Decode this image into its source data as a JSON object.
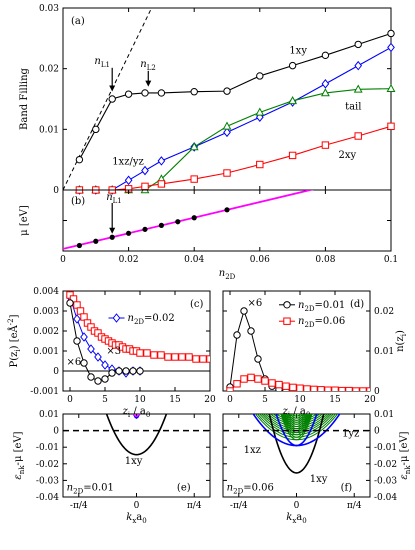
{
  "chart_data": [
    {
      "id": "a",
      "type": "line",
      "panel_label": "(a)",
      "ylabel": "Band Filling",
      "xlim": [
        0,
        0.1
      ],
      "ylim": [
        0,
        0.03
      ],
      "xticks": [
        0,
        0.02,
        0.04,
        0.06,
        0.08,
        0.1
      ],
      "xticklabels": [
        "",
        "",
        "",
        "",
        "",
        ""
      ],
      "yticks": [
        0,
        0.01,
        0.02,
        0.03
      ],
      "yticklabels": [
        "0",
        "0.01",
        "0.02",
        "0.03"
      ],
      "series": [
        {
          "name": "1xy",
          "color": "#000000",
          "marker": "circle",
          "x": [
            0.005,
            0.01,
            0.015,
            0.02,
            0.025,
            0.03,
            0.04,
            0.05,
            0.06,
            0.07,
            0.08,
            0.09,
            0.1
          ],
          "y": [
            0.005,
            0.01,
            0.015,
            0.0158,
            0.016,
            0.016,
            0.0162,
            0.0163,
            0.0188,
            0.0205,
            0.0222,
            0.024,
            0.0258
          ]
        },
        {
          "name": "1xz/yz",
          "color": "#0000ff",
          "marker": "diamond",
          "x": [
            0.005,
            0.01,
            0.015,
            0.02,
            0.025,
            0.03,
            0.04,
            0.05,
            0.06,
            0.07,
            0.08,
            0.09,
            0.1
          ],
          "y": [
            0,
            0,
            0,
            0.0016,
            0.0032,
            0.0048,
            0.0071,
            0.0095,
            0.012,
            0.0145,
            0.0175,
            0.0205,
            0.0235
          ]
        },
        {
          "name": "tail",
          "color": "#008000",
          "marker": "triangle",
          "x": [
            0.005,
            0.01,
            0.015,
            0.02,
            0.025,
            0.03,
            0.04,
            0.05,
            0.06,
            0.07,
            0.08,
            0.09,
            0.1
          ],
          "y": [
            0,
            0,
            0,
            0,
            0,
            0.0018,
            0.0071,
            0.0105,
            0.0128,
            0.0147,
            0.016,
            0.0166,
            0.0167
          ]
        },
        {
          "name": "2xy",
          "color": "#ff0000",
          "marker": "square",
          "x": [
            0.005,
            0.01,
            0.015,
            0.02,
            0.025,
            0.03,
            0.04,
            0.05,
            0.06,
            0.07,
            0.08,
            0.09,
            0.1
          ],
          "y": [
            0,
            0,
            0,
            0.0002,
            0.0006,
            0.001,
            0.0018,
            0.0028,
            0.0042,
            0.0057,
            0.0074,
            0.0089,
            0.0105
          ]
        }
      ],
      "guide_line": {
        "x": [
          0,
          0.027
        ],
        "y": [
          0,
          0.03
        ],
        "dash": true
      },
      "annotations": [
        {
          "text": "n",
          "sub": "L1",
          "x": 0.012,
          "y": 0.0208,
          "arrow_to": [
            0.015,
            0.0159
          ]
        },
        {
          "text": "n",
          "sub": "L2",
          "x": 0.026,
          "y": 0.0203,
          "arrow_to": [
            0.026,
            0.0167
          ]
        },
        {
          "text": "1xy",
          "x": 0.069,
          "y": 0.0225
        },
        {
          "text": "1xz/yz",
          "x": 0.015,
          "y": 0.0042,
          "color": "#0000ff"
        },
        {
          "text": "tail",
          "x": 0.086,
          "y": 0.0133,
          "color": "#008000"
        },
        {
          "text": "2xy",
          "x": 0.084,
          "y": 0.0053,
          "color": "#ff0000"
        }
      ]
    },
    {
      "id": "b",
      "type": "line",
      "panel_label": "(b)",
      "ylabel": "μ [eV]",
      "xlabel": "n2D",
      "xlim": [
        0,
        0.1
      ],
      "ylim": [
        -0.01,
        0.01
      ],
      "xticks": [
        0,
        0.02,
        0.04,
        0.06,
        0.08,
        0.1
      ],
      "xticklabels": [
        "0",
        "0.02",
        "0.04",
        "0.06",
        "0.08",
        "0.1"
      ],
      "yticks": [
        -0.01,
        0,
        0.01
      ],
      "yticklabels": [
        "",
        "",
        ""
      ],
      "line": {
        "color": "#ff00ff",
        "x": [
          0,
          0.1
        ],
        "y": [
          -0.0093,
          0.0163
        ]
      },
      "points": {
        "color": "#000000",
        "x": [
          0.005,
          0.01,
          0.015,
          0.02,
          0.025,
          0.03,
          0.035,
          0.04,
          0.05
        ],
        "y": [
          -0.0082,
          -0.0068,
          -0.0055,
          -0.0042,
          -0.0029,
          -0.0016,
          -0.0004,
          0.0009,
          0.0035
        ]
      },
      "annotations": [
        {
          "text": "n",
          "sub": "L1",
          "x": 0.015,
          "y": 0.0075,
          "arrow_to": [
            0.015,
            -0.005
          ]
        }
      ]
    },
    {
      "id": "c",
      "type": "line",
      "panel_label": "(c)",
      "ylabel": "P(z",
      "ylabel_sub": "i",
      "ylabel_tail": ")  [eÅ",
      "ylabel_sup": "-2",
      "ylabel_end": "]",
      "xlabel": "z",
      "xlabel_sub": "i",
      "xlabel_tail": " / a",
      "xlabel_sub2": "0",
      "xlim": [
        -1,
        20
      ],
      "ylim": [
        -0.001,
        0.004
      ],
      "xticks": [
        0,
        5,
        10,
        15,
        20
      ],
      "xticklabels": [
        "0",
        "5",
        "10",
        "15",
        "20"
      ],
      "yticks": [
        -0.001,
        0,
        0.001,
        0.002,
        0.003,
        0.004
      ],
      "yticklabels": [
        "-0.001",
        "0",
        "0.001",
        "0.002",
        "0.003",
        "0.004"
      ],
      "series": [
        {
          "name": "n2D=0.02",
          "color": "#0000ff",
          "marker": "diamond",
          "x": [
            0,
            1,
            2,
            3,
            4,
            5,
            6,
            7,
            8,
            9,
            10
          ],
          "y": [
            0.0037,
            0.0026,
            0.0017,
            0.0011,
            0.0007,
            0.0003,
            0.0001,
            0,
            -0.0001,
            0,
            0
          ]
        },
        {
          "name": "n2D=0.06",
          "color": "#ff0000",
          "marker": "square",
          "x": [
            0,
            0.5,
            1,
            1.5,
            2,
            2.5,
            3,
            3.5,
            4,
            4.5,
            5,
            5.5,
            6,
            6.5,
            7,
            7.5,
            8,
            8.5,
            9,
            9.5,
            10,
            11,
            12,
            13,
            14,
            15,
            16,
            17,
            18,
            19,
            20
          ],
          "y": [
            0.0038,
            0.0036,
            0.0033,
            0.003,
            0.0027,
            0.0024,
            0.0022,
            0.002,
            0.0019,
            0.0017,
            0.0016,
            0.0015,
            0.0014,
            0.0013,
            0.0013,
            0.0012,
            0.0011,
            0.0011,
            0.001,
            0.001,
            0.0009,
            0.0009,
            0.0008,
            0.0008,
            0.0007,
            0.0007,
            0.0007,
            0.0007,
            0.0006,
            0.0006,
            0.0006
          ]
        },
        {
          "name": "n2D=0.01",
          "color": "#000000",
          "marker": "circle",
          "x": [
            0,
            1,
            2,
            3,
            4,
            5,
            6,
            7,
            8,
            9,
            10
          ],
          "y": [
            0.0034,
            0.0015,
            0.0004,
            -0.0003,
            -0.0005,
            -0.0004,
            -0.0001,
            0,
            0,
            0,
            0
          ]
        }
      ],
      "legend": [
        {
          "label": "n",
          "sub": "2D",
          "tail": "=0.02",
          "color": "#0000ff",
          "marker": "diamond",
          "x": 7.5,
          "y": 0.0025
        }
      ],
      "annotations": [
        {
          "text": "×6",
          "x": -0.5,
          "y": 0.0003
        },
        {
          "text": "×3",
          "x": 5.2,
          "y": 0.00085,
          "color": "#0000ff"
        }
      ]
    },
    {
      "id": "d",
      "type": "line",
      "panel_label": "(d)",
      "ylabel": "n(z",
      "ylabel_sub": "i",
      "ylabel_tail": ")",
      "xlabel": "z",
      "xlabel_sub": "i",
      "xlabel_tail": " / a",
      "xlabel_sub2": "0",
      "xlim": [
        -1,
        20
      ],
      "ylim": [
        0,
        0.025
      ],
      "xticks": [
        0,
        5,
        10,
        15,
        20
      ],
      "xticklabels": [
        "0",
        "5",
        "10",
        "15",
        "20"
      ],
      "yticks": [
        0,
        0.01,
        0.02
      ],
      "yticklabels": [
        "0",
        "0.01",
        "0.02"
      ],
      "series": [
        {
          "name": "n2D=0.01",
          "color": "#000000",
          "marker": "circle",
          "x": [
            0,
            1,
            2,
            3,
            4,
            5,
            6,
            7,
            8,
            9,
            10,
            11,
            12
          ],
          "y": [
            0.001,
            0.014,
            0.02,
            0.015,
            0.008,
            0.003,
            0.0012,
            0.0004,
            0.0001,
            0,
            0,
            0,
            0
          ]
        },
        {
          "name": "n2D=0.06",
          "color": "#ff0000",
          "marker": "square",
          "x": [
            0,
            1,
            2,
            3,
            4,
            5,
            6,
            7,
            8,
            9,
            10,
            11,
            12,
            13,
            14,
            15,
            16,
            17,
            18,
            19,
            20
          ],
          "y": [
            0,
            0.0018,
            0.003,
            0.0034,
            0.003,
            0.0025,
            0.002,
            0.0016,
            0.0012,
            0.0009,
            0.0007,
            0.0005,
            0.0004,
            0.0003,
            0.0002,
            0.0002,
            0.0001,
            0.0001,
            0,
            0,
            0
          ]
        }
      ],
      "legend": [
        {
          "label": "n",
          "sub": "2D",
          "tail": "=0.01",
          "color": "#000000",
          "marker": "circle",
          "x": 9,
          "y": 0.0208
        },
        {
          "label": "n",
          "sub": "2D",
          "tail": "=0.06",
          "color": "#ff0000",
          "marker": "square",
          "x": 9,
          "y": 0.0167
        }
      ],
      "annotations": [
        {
          "text": "×6",
          "x": 2.5,
          "y": 0.0212
        }
      ]
    },
    {
      "id": "e",
      "type": "line",
      "panel_label": "(e)",
      "ylabel": "ε",
      "ylabel_sub": "nk",
      "ylabel_tail": "-μ  [eV]",
      "xlabel": "k",
      "xlabel_sub": "x",
      "xlabel_tail": "a",
      "xlabel_sub2": "0",
      "xlim": [
        -1.0,
        1.0
      ],
      "ylim": [
        -0.04,
        0.01
      ],
      "xticks": [
        -0.7854,
        0,
        0.7854
      ],
      "xticklabels": [
        "-π/4",
        "0",
        "π/4"
      ],
      "yticks": [
        -0.04,
        -0.03,
        -0.02,
        -0.01,
        0,
        0.01
      ],
      "yticklabels": [
        "-0.04",
        "-0.03",
        "-0.02",
        "-0.01",
        "0",
        "0.01"
      ],
      "bands": [
        {
          "name": "1xy",
          "color": "#000000",
          "min": -0.0145,
          "curv": 0.148,
          "width": 1.6
        }
      ],
      "minor_bands": [
        {
          "color": "#0000ff",
          "min": 0.0075,
          "curv": 1.5
        },
        {
          "color": "#ff00ff",
          "min": 0.0085,
          "curv": 1.2
        }
      ],
      "fermi_level": 0,
      "labels": [
        {
          "text": "1xy",
          "x": -0.16,
          "y": -0.02
        },
        {
          "text": "n",
          "sub": "2D",
          "tail": "=0.01",
          "x": -0.95,
          "y": -0.036
        },
        {
          "text": "(e)",
          "x": 0.55,
          "y": -0.036
        }
      ]
    },
    {
      "id": "f",
      "type": "line",
      "panel_label": "(f)",
      "ylabel": "ε",
      "ylabel_sub": "nk",
      "ylabel_tail": "-μ  [eV]",
      "xlabel": "k",
      "xlabel_sub": "x",
      "xlabel_tail": "a",
      "xlabel_sub2": "0",
      "xlim": [
        -1.0,
        1.0
      ],
      "ylim": [
        -0.04,
        0.01
      ],
      "xticks": [
        -0.7854,
        0,
        0.7854
      ],
      "xticklabels": [
        "-π/4",
        "0",
        "π/4"
      ],
      "yticks": [
        -0.04,
        -0.03,
        -0.02,
        -0.01,
        0,
        0.01
      ],
      "yticklabels": [
        "-0.04",
        "-0.03",
        "-0.02",
        "-0.01",
        "0",
        "0.01"
      ],
      "bands": [
        {
          "name": "1xy",
          "color": "#000000",
          "min": -0.0255,
          "curv": 0.26,
          "width": 1.6
        },
        {
          "name": "1xz",
          "color": "#0000ff",
          "min": -0.009,
          "curv": 0.055,
          "width": 1.6
        },
        {
          "name": "1yz",
          "color": "#0000ff",
          "min": -0.009,
          "curv": 0.25,
          "width": 1.6
        }
      ],
      "green_bands": {
        "color": "#008000",
        "mins": [
          -0.0055,
          -0.004,
          -0.0025,
          -0.0012,
          0,
          0.0012,
          0.0025,
          0.0038,
          0.005,
          0.0062,
          0.0075,
          0.0088,
          0.01
        ],
        "curv_light": 0.05,
        "curv_heavy": 0.35
      },
      "fermi_level": 0,
      "labels": [
        {
          "text": "1yz",
          "x": 0.62,
          "y": -0.0035,
          "color": "#0000ff"
        },
        {
          "text": "1xz",
          "x": -0.72,
          "y": -0.0135,
          "color": "#0000ff"
        },
        {
          "text": "1xy",
          "x": 0.18,
          "y": -0.031
        },
        {
          "text": "n",
          "sub": "2D",
          "tail": "=0.06",
          "x": -0.95,
          "y": -0.036
        },
        {
          "text": "(f)",
          "x": 0.6,
          "y": -0.036
        }
      ]
    }
  ]
}
